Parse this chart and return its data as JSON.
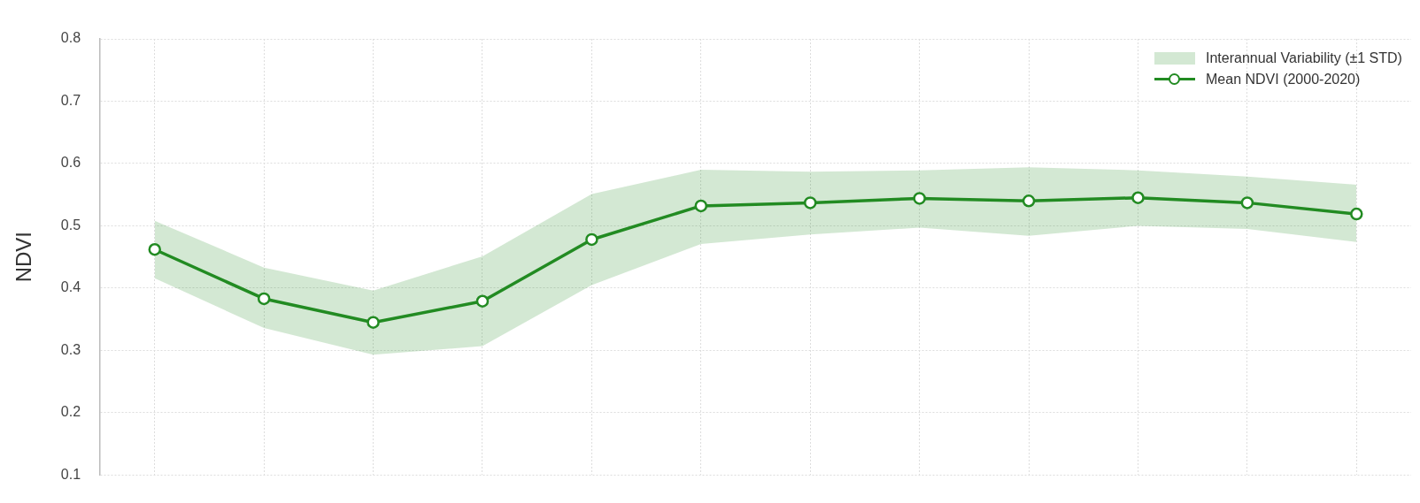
{
  "chart_data": {
    "type": "line",
    "ylabel": "NDVI",
    "categories": [
      null,
      null,
      null,
      null,
      null,
      null,
      null,
      null,
      null,
      null,
      null,
      null
    ],
    "series": [
      {
        "name": "Mean NDVI (2000-2020)",
        "color": "#228b22",
        "values": [
          0.462,
          0.383,
          0.345,
          0.379,
          0.478,
          0.532,
          0.537,
          0.544,
          0.54,
          0.545,
          0.537,
          0.519
        ],
        "lower": [
          0.416,
          0.336,
          0.293,
          0.307,
          0.405,
          0.471,
          0.486,
          0.497,
          0.484,
          0.5,
          0.495,
          0.474
        ],
        "upper": [
          0.508,
          0.433,
          0.396,
          0.451,
          0.551,
          0.59,
          0.587,
          0.589,
          0.594,
          0.589,
          0.579,
          0.566
        ]
      }
    ],
    "annotations": [
      "Interannual Variability (±1 STD)"
    ],
    "ylim": [
      0.1,
      0.8
    ],
    "yticks": [
      0.1,
      0.2,
      0.3,
      0.4,
      0.5,
      0.6,
      0.7,
      0.8
    ],
    "grid": true,
    "legend": "top right",
    "marker": "circle",
    "line_style": "solid"
  }
}
